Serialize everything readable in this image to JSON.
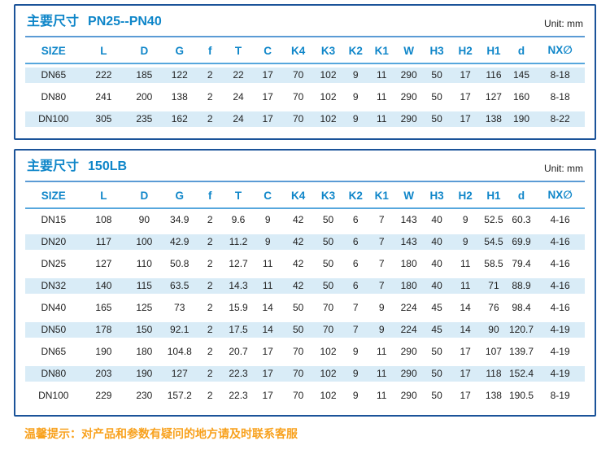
{
  "unit_label": "Unit: mm",
  "columns": [
    "SIZE",
    "L",
    "D",
    "G",
    "f",
    "T",
    "C",
    "K4",
    "K3",
    "K2",
    "K1",
    "W",
    "H3",
    "H2",
    "H1",
    "d",
    "NX∅"
  ],
  "tables": [
    {
      "title_prefix": "主要尺寸",
      "title_suffix": "PN25--PN40",
      "zebra": "even",
      "rows": [
        [
          "DN65",
          "222",
          "185",
          "122",
          "2",
          "22",
          "17",
          "70",
          "102",
          "9",
          "11",
          "290",
          "50",
          "17",
          "116",
          "145",
          "8-18"
        ],
        [
          "DN80",
          "241",
          "200",
          "138",
          "2",
          "24",
          "17",
          "70",
          "102",
          "9",
          "11",
          "290",
          "50",
          "17",
          "127",
          "160",
          "8-18"
        ],
        [
          "DN100",
          "305",
          "235",
          "162",
          "2",
          "24",
          "17",
          "70",
          "102",
          "9",
          "11",
          "290",
          "50",
          "17",
          "138",
          "190",
          "8-22"
        ]
      ]
    },
    {
      "title_prefix": "主要尺寸",
      "title_suffix": "150LB",
      "zebra": "odd",
      "rows": [
        [
          "DN15",
          "108",
          "90",
          "34.9",
          "2",
          "9.6",
          "9",
          "42",
          "50",
          "6",
          "7",
          "143",
          "40",
          "9",
          "52.5",
          "60.3",
          "4-16"
        ],
        [
          "DN20",
          "117",
          "100",
          "42.9",
          "2",
          "11.2",
          "9",
          "42",
          "50",
          "6",
          "7",
          "143",
          "40",
          "9",
          "54.5",
          "69.9",
          "4-16"
        ],
        [
          "DN25",
          "127",
          "110",
          "50.8",
          "2",
          "12.7",
          "11",
          "42",
          "50",
          "6",
          "7",
          "180",
          "40",
          "11",
          "58.5",
          "79.4",
          "4-16"
        ],
        [
          "DN32",
          "140",
          "115",
          "63.5",
          "2",
          "14.3",
          "11",
          "42",
          "50",
          "6",
          "7",
          "180",
          "40",
          "11",
          "71",
          "88.9",
          "4-16"
        ],
        [
          "DN40",
          "165",
          "125",
          "73",
          "2",
          "15.9",
          "14",
          "50",
          "70",
          "7",
          "9",
          "224",
          "45",
          "14",
          "76",
          "98.4",
          "4-16"
        ],
        [
          "DN50",
          "178",
          "150",
          "92.1",
          "2",
          "17.5",
          "14",
          "50",
          "70",
          "7",
          "9",
          "224",
          "45",
          "14",
          "90",
          "120.7",
          "4-19"
        ],
        [
          "DN65",
          "190",
          "180",
          "104.8",
          "2",
          "20.7",
          "17",
          "70",
          "102",
          "9",
          "11",
          "290",
          "50",
          "17",
          "107",
          "139.7",
          "4-19"
        ],
        [
          "DN80",
          "203",
          "190",
          "127",
          "2",
          "22.3",
          "17",
          "70",
          "102",
          "9",
          "11",
          "290",
          "50",
          "17",
          "118",
          "152.4",
          "4-19"
        ],
        [
          "DN100",
          "229",
          "230",
          "157.2",
          "2",
          "22.3",
          "17",
          "70",
          "102",
          "9",
          "11",
          "290",
          "50",
          "17",
          "138",
          "190.5",
          "8-19"
        ]
      ]
    }
  ],
  "footer": {
    "notice": "温馨提示：对产品和参数有疑问的地方请及时联系客服"
  },
  "colors": {
    "accent_blue": "#0f86c9",
    "border_blue": "#1b5399",
    "stripe_blue": "#d9ecf7",
    "divider_blue": "#5b9bd5",
    "header_line_blue": "#56a7dd",
    "notice_orange": "#f8a11d",
    "text_dark": "#1f1f1f"
  }
}
